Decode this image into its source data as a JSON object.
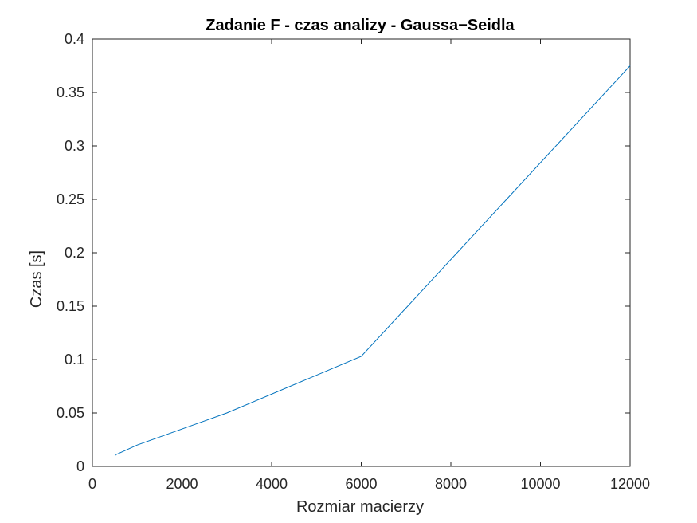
{
  "chart_data": {
    "type": "line",
    "title": "Zadanie F - czas analizy - Gaussa−Seidla",
    "xlabel": "Rozmiar macierzy",
    "ylabel": "Czas [s]",
    "xlim": [
      0,
      12000
    ],
    "ylim": [
      0,
      0.4
    ],
    "x_ticks": [
      0,
      2000,
      4000,
      6000,
      8000,
      10000,
      12000
    ],
    "x_tick_labels": [
      "0",
      "2000",
      "4000",
      "6000",
      "8000",
      "10000",
      "12000"
    ],
    "y_ticks": [
      0,
      0.05,
      0.1,
      0.15,
      0.2,
      0.25,
      0.3,
      0.35,
      0.4
    ],
    "y_tick_labels": [
      "0",
      "0.05",
      "0.1",
      "0.15",
      "0.2",
      "0.25",
      "0.3",
      "0.35",
      "0.4"
    ],
    "grid": false,
    "series": [
      {
        "color": "#0072BD",
        "x": [
          500,
          1000,
          3000,
          6000,
          12000
        ],
        "y": [
          0.0105,
          0.02,
          0.05,
          0.103,
          0.375
        ]
      }
    ]
  }
}
